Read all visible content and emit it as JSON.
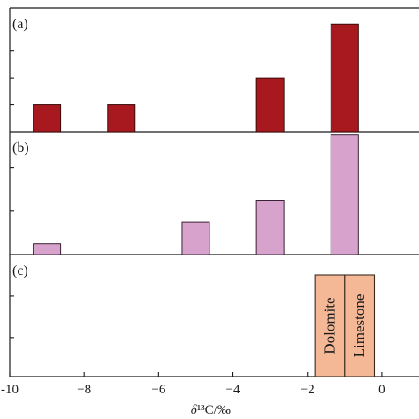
{
  "chart_data": [
    {
      "panel_label": "(a)",
      "type": "bar",
      "x": [
        -9,
        -7,
        -3,
        -1
      ],
      "values": [
        1,
        1,
        2,
        4
      ],
      "style": {
        "fill": "#a8191f",
        "stroke": "#3a0a0a"
      }
    },
    {
      "panel_label": "(b)",
      "type": "bar",
      "x": [
        -9,
        -5,
        -3,
        -1
      ],
      "values": [
        1,
        3,
        5,
        11
      ],
      "style": {
        "fill": "#d7a2cc",
        "stroke": "#3a2235"
      }
    },
    {
      "panel_label": "(c)",
      "type": "bar",
      "categories": [
        "Dolomite",
        "Limestone"
      ],
      "ranges": [
        [
          -1.8,
          -1.0
        ],
        [
          -1.0,
          -0.2
        ]
      ],
      "style": {
        "fill": "#f4b896",
        "stroke": "#3a2a1e"
      }
    }
  ],
  "x_axis": {
    "xlim": [
      -10,
      1
    ],
    "ticks": [
      {
        "value": -10,
        "label": "-10"
      },
      {
        "value": -8,
        "label": "−8"
      },
      {
        "value": -6,
        "label": "−6"
      },
      {
        "value": -4,
        "label": "−4"
      },
      {
        "value": -2,
        "label": "−2"
      },
      {
        "value": 0,
        "label": "0"
      }
    ],
    "label": "δ¹³C/‰"
  },
  "grid": false
}
